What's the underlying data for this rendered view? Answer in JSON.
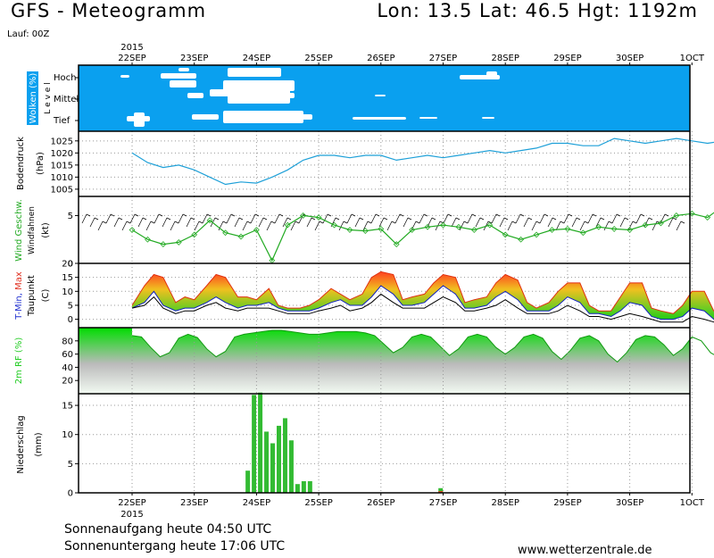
{
  "header": {
    "title": "GFS - Meteogramm",
    "coords": "Lon: 13.5 Lat: 46.5 Hgt: 1192m",
    "run": "Lauf: 00Z"
  },
  "footer": {
    "sunrise": "Sonnenaufgang heute 04:50 UTC",
    "sunset": "Sonnenuntergang heute 17:06 UTC",
    "credit": "www.wetterzentrale.de"
  },
  "colors": {
    "clouds_bg": "#0aa0ef",
    "pressure_line": "#1ea0d8",
    "wind_line": "#22aa22",
    "temp_fill_warm": "#e8c020",
    "temp_fill_green": "#33cc33",
    "humidity_green": "#22cc22",
    "precip_green": "#33bb33",
    "precip_red": "#e05020"
  },
  "chart_data": [
    {
      "type": "heatmap",
      "panel": "clouds",
      "ylabel": "Wolken (%)",
      "ylabel2": "L e v e l",
      "levels": [
        "Hoch",
        "Mittel",
        "Tief"
      ],
      "note": "white areas mark cloud-free periods"
    },
    {
      "type": "line",
      "panel": "pressure",
      "ylabel": "Bodendruck",
      "unit": "(hPa)",
      "ylim": [
        1002,
        1029
      ],
      "yticks": [
        1005,
        1010,
        1015,
        1020,
        1025
      ],
      "x_days": [
        0,
        0.25,
        0.5,
        0.75,
        1.0,
        1.25,
        1.5,
        1.75,
        2.0,
        2.25,
        2.5,
        2.75,
        3.0,
        3.25,
        3.5,
        3.75,
        4.0,
        4.25,
        4.5,
        4.75,
        5.0,
        5.25,
        5.5,
        5.75,
        6.0,
        6.25,
        6.5,
        6.75,
        7.0,
        7.25,
        7.5,
        7.75,
        8.0,
        8.25,
        8.5,
        8.75,
        9.0,
        9.25,
        9.5,
        9.75
      ],
      "values": [
        1020,
        1016,
        1014,
        1015,
        1013,
        1010,
        1007,
        1008,
        1007.5,
        1010,
        1013,
        1017,
        1019,
        1019,
        1018,
        1019,
        1019,
        1017,
        1018,
        1019,
        1018,
        1019,
        1020,
        1021,
        1020,
        1021,
        1022,
        1024,
        1024,
        1023,
        1023,
        1026,
        1025,
        1024,
        1025,
        1026,
        1025,
        1024,
        1025,
        1023
      ]
    },
    {
      "type": "line",
      "panel": "wind",
      "series_label": "Wind Geschw.",
      "ylabel": "Windfahnen",
      "unit": "(kt)",
      "ylim": [
        0,
        7
      ],
      "yticks": [
        0,
        5
      ],
      "x_days": [
        0,
        0.25,
        0.5,
        0.75,
        1.0,
        1.25,
        1.5,
        1.75,
        2.0,
        2.25,
        2.5,
        2.75,
        3.0,
        3.25,
        3.5,
        3.75,
        4.0,
        4.25,
        4.5,
        4.75,
        5.0,
        5.25,
        5.5,
        5.75,
        6.0,
        6.25,
        6.5,
        6.75,
        7.0,
        7.25,
        7.5,
        7.75,
        8.0,
        8.25,
        8.5,
        8.75,
        9.0,
        9.25,
        9.5,
        9.75
      ],
      "values": [
        3.5,
        2.5,
        2.0,
        2.2,
        3.0,
        4.5,
        3.2,
        2.8,
        3.5,
        0.3,
        4.0,
        5.0,
        4.8,
        4.0,
        3.5,
        3.4,
        3.6,
        2.0,
        3.5,
        3.8,
        4.0,
        3.8,
        3.5,
        4.0,
        3.0,
        2.5,
        3.0,
        3.5,
        3.6,
        3.2,
        3.8,
        3.6,
        3.5,
        4.0,
        4.2,
        5.0,
        5.2,
        4.8,
        6.0,
        5.0
      ]
    },
    {
      "type": "area",
      "panel": "temperature",
      "ylabel_parts": [
        "T-Min,",
        "Max"
      ],
      "ylabel2": "Taupunkt",
      "unit": "(C)",
      "ylim": [
        -3,
        20
      ],
      "yticks": [
        0,
        5,
        10,
        15,
        20
      ],
      "x_days": [
        0,
        0.2,
        0.35,
        0.5,
        0.7,
        0.85,
        1.0,
        1.2,
        1.35,
        1.5,
        1.7,
        1.85,
        2.0,
        2.2,
        2.35,
        2.5,
        2.7,
        2.85,
        3.0,
        3.2,
        3.35,
        3.5,
        3.7,
        3.85,
        4.0,
        4.2,
        4.35,
        4.5,
        4.7,
        4.85,
        5.0,
        5.2,
        5.35,
        5.5,
        5.7,
        5.85,
        6.0,
        6.2,
        6.35,
        6.5,
        6.7,
        6.85,
        7.0,
        7.2,
        7.35,
        7.5,
        7.7,
        7.85,
        8.0,
        8.2,
        8.35,
        8.5,
        8.7,
        8.85,
        9.0,
        9.2,
        9.35,
        9.5,
        9.7,
        9.85
      ],
      "t_max": [
        5,
        12,
        16,
        15,
        6,
        8,
        7,
        12,
        16,
        15,
        8,
        8,
        7,
        11,
        5,
        4,
        4,
        5,
        7,
        11,
        9,
        7,
        9,
        15,
        17,
        16,
        7,
        8,
        9,
        13,
        16,
        15,
        6,
        7,
        8,
        13,
        16,
        14,
        6,
        4,
        6,
        10,
        13,
        13,
        5,
        3,
        3,
        8,
        13,
        13,
        4,
        3,
        2,
        5,
        10,
        10,
        3,
        2,
        2,
        2
      ],
      "t_min": [
        4,
        6,
        10,
        5,
        3,
        4,
        4,
        6,
        8,
        6,
        4,
        5,
        5,
        6,
        4,
        3,
        3,
        3,
        4,
        6,
        7,
        5,
        5,
        8,
        12,
        9,
        5,
        5,
        6,
        9,
        12,
        9,
        4,
        4,
        5,
        8,
        10,
        7,
        3,
        3,
        3,
        5,
        8,
        6,
        2,
        2,
        1,
        3,
        6,
        5,
        1,
        0,
        0,
        1,
        4,
        3,
        0,
        -1,
        -1,
        -1
      ],
      "dew_point": [
        4,
        5,
        8,
        4,
        2,
        3,
        3,
        5,
        6,
        4,
        3,
        4,
        4,
        4,
        3,
        2,
        2,
        2,
        3,
        4,
        5,
        3,
        4,
        6,
        9,
        6,
        4,
        4,
        4,
        6,
        8,
        6,
        3,
        3,
        4,
        5,
        7,
        4,
        2,
        2,
        2,
        3,
        5,
        3,
        1,
        1,
        0,
        1,
        2,
        1,
        0,
        -1,
        -1,
        -1,
        1,
        0,
        -1,
        -2,
        -2,
        -2
      ]
    },
    {
      "type": "area",
      "panel": "humidity",
      "ylabel": "2m RF (%)",
      "ylim": [
        0,
        100
      ],
      "yticks": [
        20,
        40,
        60,
        80
      ],
      "x_days": [
        0,
        0.15,
        0.3,
        0.45,
        0.6,
        0.75,
        0.9,
        1.05,
        1.2,
        1.35,
        1.5,
        1.65,
        1.8,
        1.95,
        2.1,
        2.25,
        2.4,
        2.55,
        2.7,
        2.85,
        3.0,
        3.15,
        3.3,
        3.45,
        3.6,
        3.75,
        3.9,
        4.05,
        4.2,
        4.35,
        4.5,
        4.65,
        4.8,
        4.95,
        5.1,
        5.25,
        5.4,
        5.55,
        5.7,
        5.85,
        6.0,
        6.15,
        6.3,
        6.45,
        6.6,
        6.75,
        6.9,
        7.05,
        7.2,
        7.35,
        7.5,
        7.65,
        7.8,
        7.95,
        8.1,
        8.25,
        8.4,
        8.55,
        8.7,
        8.85,
        9.0,
        9.15,
        9.3,
        9.45,
        9.6,
        9.75
      ],
      "values": [
        88,
        86,
        70,
        56,
        62,
        84,
        90,
        85,
        68,
        56,
        64,
        86,
        90,
        92,
        94,
        96,
        96,
        94,
        92,
        90,
        90,
        92,
        94,
        94,
        94,
        92,
        88,
        75,
        62,
        70,
        86,
        90,
        86,
        72,
        58,
        68,
        86,
        90,
        86,
        70,
        60,
        70,
        86,
        90,
        84,
        64,
        52,
        66,
        84,
        88,
        80,
        60,
        48,
        62,
        82,
        88,
        86,
        74,
        58,
        68,
        86,
        80,
        62,
        54,
        74,
        90
      ]
    },
    {
      "type": "bar",
      "panel": "precipitation",
      "ylabel": "Niederschlag",
      "unit": "(mm)",
      "ylim": [
        0,
        17
      ],
      "yticks": [
        0,
        5,
        10,
        15
      ],
      "x_days": [
        1.86,
        1.96,
        2.06,
        2.16,
        2.26,
        2.36,
        2.46,
        2.56,
        2.66,
        2.76,
        2.86,
        4.96
      ],
      "values": [
        3.8,
        16.8,
        17.2,
        10.5,
        8.5,
        11.5,
        12.8,
        9.0,
        1.5,
        2.0,
        2.0,
        0.8
      ],
      "red_values": [
        0,
        0,
        0,
        0,
        0,
        0,
        0,
        0,
        0,
        0,
        0,
        0.3
      ]
    }
  ],
  "axis": {
    "days": [
      "22SEP",
      "23SEP",
      "24SEP",
      "25SEP",
      "26SEP",
      "27SEP",
      "28SEP",
      "29SEP",
      "30SEP",
      "1OCT"
    ],
    "year": "2015"
  }
}
